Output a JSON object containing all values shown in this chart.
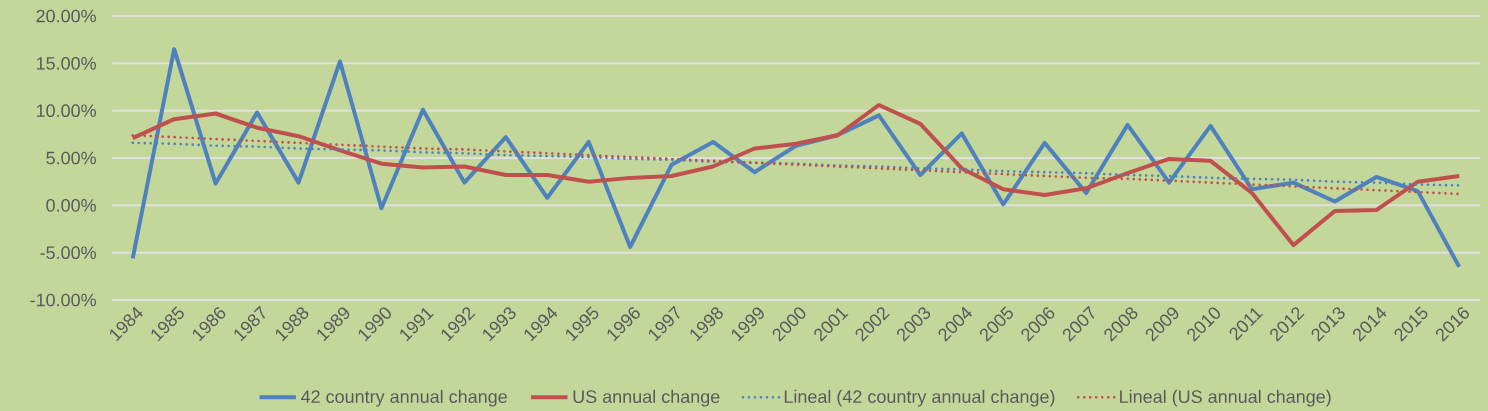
{
  "chart_data": {
    "type": "line",
    "categories": [
      "1984",
      "1985",
      "1986",
      "1987",
      "1988",
      "1989",
      "1990",
      "1991",
      "1992",
      "1993",
      "1994",
      "1995",
      "1996",
      "1997",
      "1998",
      "1999",
      "2000",
      "2001",
      "2002",
      "2003",
      "2004",
      "2005",
      "2006",
      "2007",
      "2008",
      "2009",
      "2010",
      "2011",
      "2012",
      "2013",
      "2014",
      "2015",
      "2016"
    ],
    "series": [
      {
        "name": "42 country annual change",
        "color": "#4f81bd",
        "line_style": "solid",
        "values": [
          -5.6,
          16.5,
          2.3,
          9.8,
          2.4,
          15.2,
          -0.3,
          10.1,
          2.4,
          7.2,
          0.8,
          6.7,
          -4.4,
          4.3,
          6.7,
          3.5,
          6.3,
          7.4,
          9.5,
          3.2,
          7.6,
          0.1,
          6.6,
          1.3,
          8.5,
          2.4,
          8.4,
          1.7,
          2.4,
          0.4,
          3.0,
          1.5,
          -6.5
        ]
      },
      {
        "name": "US annual change",
        "color": "#c0504d",
        "line_style": "solid",
        "values": [
          7.1,
          9.1,
          9.7,
          8.2,
          7.3,
          5.8,
          4.4,
          4.0,
          4.1,
          3.2,
          3.2,
          2.5,
          2.9,
          3.1,
          4.1,
          6.0,
          6.5,
          7.4,
          10.6,
          8.6,
          3.9,
          1.7,
          1.1,
          1.8,
          3.4,
          4.9,
          4.7,
          1.3,
          -4.2,
          -0.6,
          -0.5,
          2.5,
          3.1
        ]
      },
      {
        "name": "Lineal (42 country annual change)",
        "color": "#4f81bd",
        "type": "line",
        "line_style": "dotted",
        "values": [
          6.6,
          6.5,
          6.3,
          6.2,
          6.0,
          5.9,
          5.8,
          5.6,
          5.5,
          5.3,
          5.2,
          5.1,
          4.9,
          4.8,
          4.6,
          4.5,
          4.4,
          4.2,
          4.1,
          3.9,
          3.8,
          3.6,
          3.5,
          3.4,
          3.2,
          3.1,
          2.9,
          2.8,
          2.7,
          2.5,
          2.4,
          2.2,
          2.1
        ]
      },
      {
        "name": "Lineal (US annual change)",
        "color": "#c0504d",
        "type": "line",
        "line_style": "dotted",
        "values": [
          7.4,
          7.2,
          7.0,
          6.8,
          6.6,
          6.4,
          6.2,
          6.0,
          5.9,
          5.7,
          5.5,
          5.3,
          5.1,
          4.9,
          4.7,
          4.5,
          4.3,
          4.1,
          3.9,
          3.7,
          3.5,
          3.3,
          3.1,
          2.9,
          2.8,
          2.6,
          2.4,
          2.2,
          2.0,
          1.8,
          1.6,
          1.4,
          1.2
        ]
      }
    ],
    "ylim": [
      -10,
      20
    ],
    "yticks": [
      {
        "value": -10,
        "label": "-10.00%"
      },
      {
        "value": -5,
        "label": "-5.00%"
      },
      {
        "value": 0,
        "label": "0.00%"
      },
      {
        "value": 5,
        "label": "5.00%"
      },
      {
        "value": 10,
        "label": "10.00%"
      },
      {
        "value": 15,
        "label": "15.00%"
      },
      {
        "value": 20,
        "label": "20.00%"
      }
    ],
    "grid": "y",
    "legend": "bottom",
    "marker": "none"
  }
}
